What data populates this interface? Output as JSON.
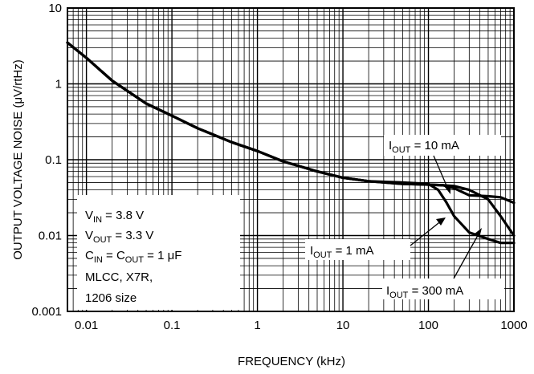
{
  "chart_data": {
    "type": "line",
    "title": "",
    "xlabel": "FREQUENCY (kHz)",
    "ylabel": "OUTPUT VOLTAGE NOISE (μV/rtHz)",
    "x_scale": "log",
    "y_scale": "log",
    "xlim": [
      0.006,
      1000
    ],
    "ylim": [
      0.001,
      10
    ],
    "grid": true,
    "x_ticks": [
      "0.01",
      "0.1",
      "1",
      "10",
      "100",
      "1000"
    ],
    "y_ticks": [
      "10",
      "1",
      "0.1",
      "0.01",
      "0.001"
    ],
    "series": [
      {
        "name": "IOUT = 10 mA",
        "x": [
          0.006,
          0.01,
          0.02,
          0.05,
          0.1,
          0.2,
          0.5,
          1,
          2,
          5,
          10,
          20,
          50,
          100,
          150,
          200,
          300,
          500,
          700,
          1000
        ],
        "y": [
          3.5,
          2.2,
          1.1,
          0.55,
          0.38,
          0.26,
          0.17,
          0.13,
          0.095,
          0.07,
          0.058,
          0.052,
          0.048,
          0.047,
          0.046,
          0.042,
          0.034,
          0.033,
          0.032,
          0.027
        ]
      },
      {
        "name": "IOUT = 1 mA",
        "x": [
          0.006,
          0.01,
          0.02,
          0.05,
          0.1,
          0.2,
          0.5,
          1,
          2,
          5,
          10,
          20,
          50,
          100,
          150,
          200,
          300,
          500,
          700,
          1000
        ],
        "y": [
          3.5,
          2.2,
          1.1,
          0.55,
          0.38,
          0.26,
          0.17,
          0.13,
          0.095,
          0.07,
          0.058,
          0.052,
          0.048,
          0.047,
          0.046,
          0.045,
          0.04,
          0.03,
          0.018,
          0.01
        ]
      },
      {
        "name": "IOUT = 300 mA",
        "x": [
          0.006,
          0.01,
          0.02,
          0.05,
          0.1,
          0.2,
          0.5,
          1,
          2,
          5,
          10,
          20,
          50,
          100,
          130,
          160,
          200,
          300,
          500,
          700,
          1000
        ],
        "y": [
          3.5,
          2.2,
          1.1,
          0.55,
          0.38,
          0.26,
          0.17,
          0.13,
          0.095,
          0.07,
          0.058,
          0.052,
          0.05,
          0.048,
          0.04,
          0.028,
          0.018,
          0.011,
          0.009,
          0.008,
          0.008
        ]
      }
    ],
    "annotations": {
      "i10_main": "I",
      "i10_sub": "OUT",
      "i10_rest": " = 10 mA",
      "i1_main": "I",
      "i1_sub": "OUT",
      "i1_rest": " = 1 mA",
      "i300_main": "I",
      "i300_sub": "OUT",
      "i300_rest": " = 300 mA"
    },
    "conditions": {
      "vin_main": "V",
      "vin_sub": "IN",
      "vin_rest": " = 3.8 V",
      "vout_main": "V",
      "vout_sub": "OUT",
      "vout_rest": " = 3.3 V",
      "cin_main": "C",
      "cin_sub": "IN",
      "cin_mid": " = C",
      "cout_sub": "OUT",
      "cin_rest": " = 1 μF",
      "line4": "MLCC, X7R,",
      "line5": "1206 size"
    }
  }
}
